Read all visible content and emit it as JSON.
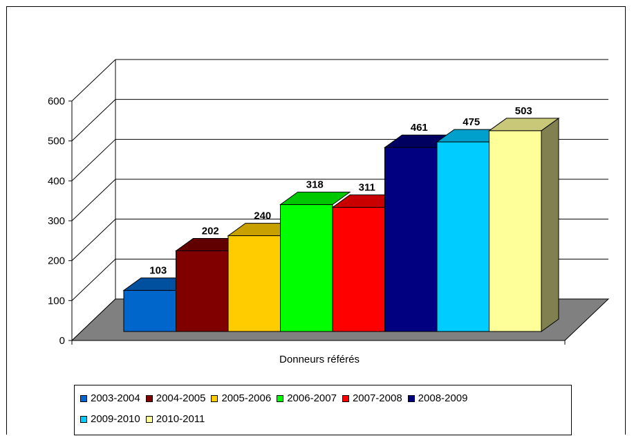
{
  "chart_data": {
    "type": "bar",
    "title": "",
    "xlabel": "Donneurs référés",
    "ylabel": "",
    "ylim": [
      0,
      600
    ],
    "yticks": [
      "0",
      "100",
      "200",
      "300",
      "400",
      "500",
      "600"
    ],
    "categories": [
      "2003-2004",
      "2004-2005",
      "2005-2006",
      "2006-2007",
      "2007-2008",
      "2008-2009",
      "2009-2010",
      "2010-2011"
    ],
    "values": [
      103,
      202,
      240,
      318,
      311,
      461,
      475,
      503
    ],
    "data_labels": [
      "103",
      "202",
      "240",
      "318",
      "311",
      "461",
      "475",
      "503"
    ],
    "colors": [
      "#0066CC",
      "#800000",
      "#FFCC00",
      "#00FF00",
      "#FF0000",
      "#000080",
      "#00CCFF",
      "#FFFF99"
    ],
    "top_colors": [
      "#0050A0",
      "#600000",
      "#C8A000",
      "#00C800",
      "#C80000",
      "#000060",
      "#00A0CC",
      "#C8C878"
    ],
    "side_color": "#808050",
    "grid": true,
    "legend_position": "bottom",
    "style": "3d-column"
  }
}
